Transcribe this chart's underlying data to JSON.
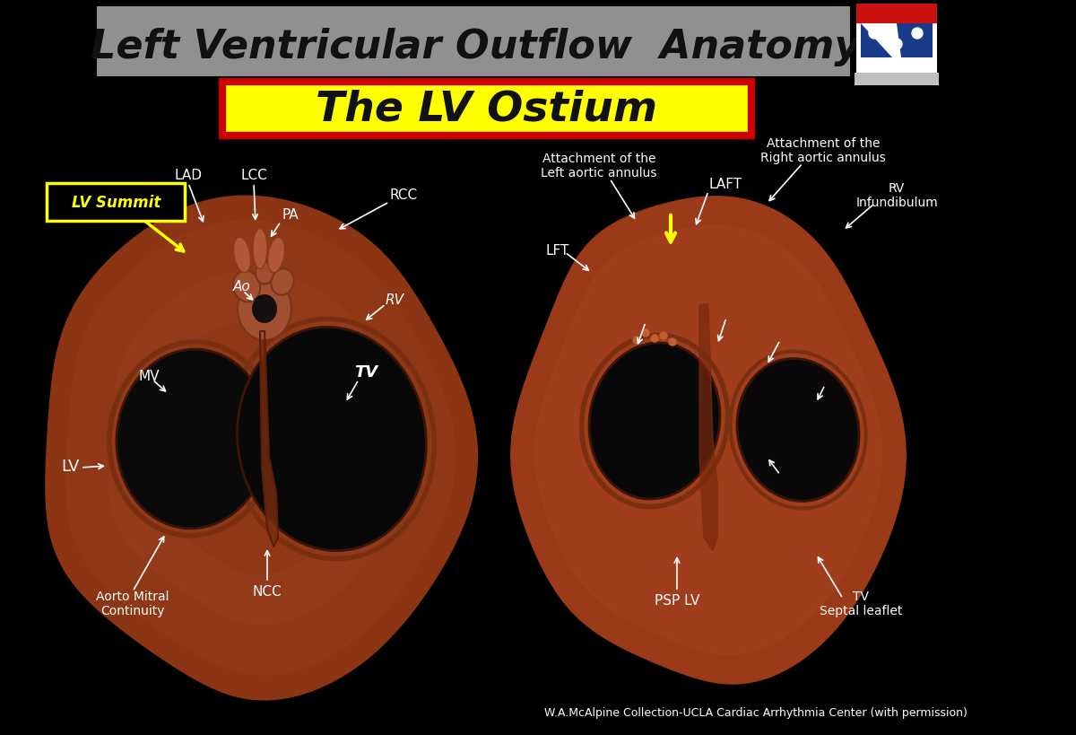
{
  "bg_color": "#000000",
  "title_banner_color": "#909090",
  "title_text": "Left Ventricular Outflow  Anatomy",
  "title_color": "#111111",
  "subtitle_text": "The LV Ostium",
  "subtitle_bg": "#ffff00",
  "subtitle_border": "#cc0000",
  "subtitle_text_color": "#111111",
  "credit_text": "W.A.McAlpine Collection-UCLA Cardiac Arrhythmia Center (with permission)",
  "credit_color": "#ffffff",
  "figsize": [
    12.0,
    8.2
  ],
  "dpi": 100
}
